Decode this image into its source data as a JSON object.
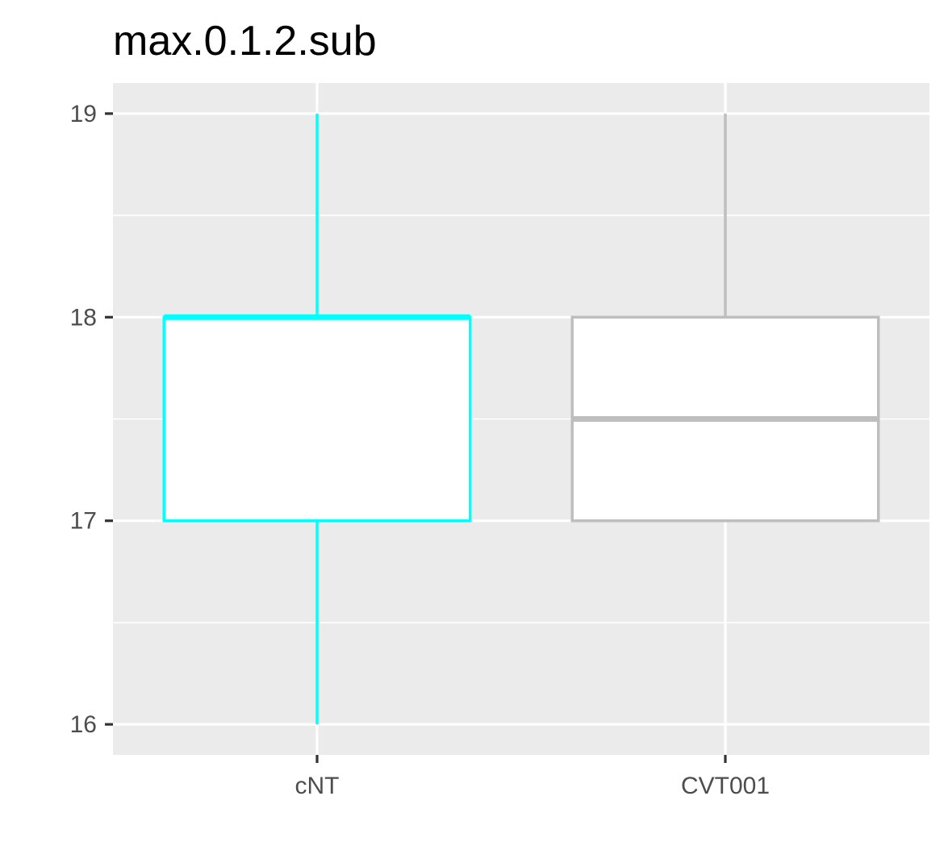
{
  "chart_data": {
    "type": "boxplot",
    "title": "max.0.1.2.sub",
    "xlabel": "",
    "ylabel": "",
    "categories": [
      "cNT",
      "CVT001"
    ],
    "ylim": [
      15.85,
      19.15
    ],
    "yticks": [
      16,
      17,
      18,
      19
    ],
    "yticks_labels": [
      "16",
      "17",
      "18",
      "19"
    ],
    "grid": true,
    "legend": "none",
    "boxes": [
      {
        "category": "cNT",
        "min": 16,
        "q1": 17,
        "median": 18,
        "q3": 18,
        "max": 19,
        "color": "#00FFFF"
      },
      {
        "category": "CVT001",
        "min": 17,
        "q1": 17,
        "median": 17.5,
        "q3": 18,
        "max": 19,
        "color": "#BEBEBE"
      }
    ],
    "colors": {
      "panel_background": "#EBEBEB",
      "grid_line": "#FFFFFF",
      "box_fill": "#FFFFFF",
      "tick_text": "#4D4D4D",
      "tick_mark": "#333333"
    }
  }
}
